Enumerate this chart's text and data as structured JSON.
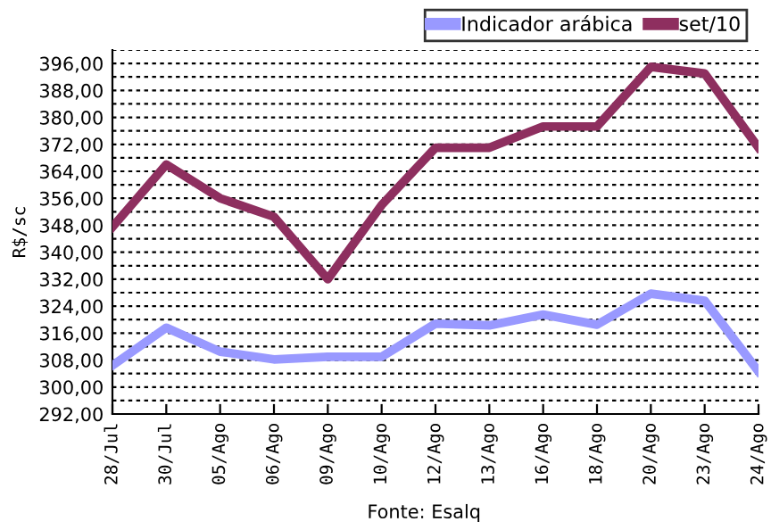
{
  "chart_data": {
    "type": "line",
    "ylabel": "R$/sc",
    "categories": [
      "28/Jul",
      "30/Jul",
      "05/Ago",
      "06/Ago",
      "09/Ago",
      "10/Ago",
      "12/Ago",
      "13/Ago",
      "16/Ago",
      "18/Ago",
      "20/Ago",
      "23/Ago",
      "24/Ago"
    ],
    "series": [
      {
        "name": "Indicador arábica",
        "color": "#9999ff",
        "values": [
          306.4,
          317.6,
          310.5,
          308.2,
          309,
          309,
          318.8,
          318.3,
          321.5,
          318.5,
          327.7,
          325.6,
          304.6
        ]
      },
      {
        "name": "set/10",
        "color": "#8e2f5f",
        "values": [
          347.5,
          366,
          356,
          350.5,
          332,
          354,
          371,
          371,
          377.3,
          377.3,
          395,
          393,
          371
        ]
      }
    ],
    "ylim": [
      292,
      400
    ],
    "yticks": [
      {
        "value": 292,
        "label": "292,00"
      },
      {
        "value": 296,
        "label": null
      },
      {
        "value": 300,
        "label": "300,00"
      },
      {
        "value": 304,
        "label": null
      },
      {
        "value": 308,
        "label": "308,00"
      },
      {
        "value": 312,
        "label": null
      },
      {
        "value": 316,
        "label": "316,00"
      },
      {
        "value": 320,
        "label": null
      },
      {
        "value": 324,
        "label": "324,00"
      },
      {
        "value": 328,
        "label": null
      },
      {
        "value": 332,
        "label": "332,00"
      },
      {
        "value": 336,
        "label": null
      },
      {
        "value": 340,
        "label": "340,00"
      },
      {
        "value": 344,
        "label": null
      },
      {
        "value": 348,
        "label": "348,00"
      },
      {
        "value": 352,
        "label": null
      },
      {
        "value": 356,
        "label": "356,00"
      },
      {
        "value": 360,
        "label": null
      },
      {
        "value": 364,
        "label": "364,00"
      },
      {
        "value": 368,
        "label": null
      },
      {
        "value": 372,
        "label": "372,00"
      },
      {
        "value": 376,
        "label": null
      },
      {
        "value": 380,
        "label": "380,00"
      },
      {
        "value": 384,
        "label": null
      },
      {
        "value": 388,
        "label": "388,00"
      },
      {
        "value": 392,
        "label": null
      },
      {
        "value": 396,
        "label": "396,00"
      },
      {
        "value": 400,
        "label": null
      }
    ],
    "grid": "y",
    "legend": "top right",
    "line_style": "solid",
    "marker": "none",
    "annotations": [
      "Fonte: Esalq"
    ]
  }
}
